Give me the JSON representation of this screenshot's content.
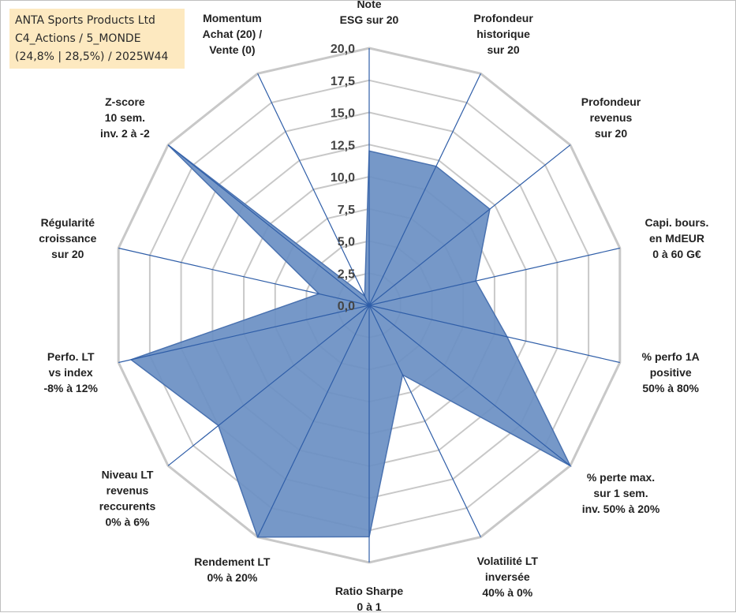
{
  "info": {
    "company": "ANTA Sports Products Ltd",
    "category": "C4_Actions / 5_MONDE",
    "stats": "(24,8% | 28,5%) / 2025W44"
  },
  "colors": {
    "fill": "#6a8fc3",
    "stroke": "#4a72b0",
    "spoke": "#2f5ea8",
    "grid": "#c8c8c8",
    "infobox": "#fde9c0"
  },
  "chart_data": {
    "type": "radar",
    "title": "",
    "rmin": 0,
    "rmax": 20,
    "tick_step": 2.5,
    "tick_labels": [
      "0,0",
      "2,5",
      "5,0",
      "7,5",
      "10,0",
      "12,5",
      "15,0",
      "17,5",
      "20,0"
    ],
    "axes": [
      {
        "lines": [
          "Note",
          "ESG sur 20"
        ],
        "value": 12
      },
      {
        "lines": [
          "Profondeur",
          "historique",
          "sur 20"
        ],
        "value": 12
      },
      {
        "lines": [
          "Profondeur",
          "revenus",
          "sur 20"
        ],
        "value": 12
      },
      {
        "lines": [
          "Capi. bours.",
          "en MdEUR",
          "0 à 60 G€"
        ],
        "value": 8.5
      },
      {
        "lines": [
          "% perfo 1A",
          "positive",
          "50% à 80%"
        ],
        "value": 11
      },
      {
        "lines": [
          "% perte max.",
          "sur 1 sem.",
          "inv. 50% à 20%"
        ],
        "value": 20
      },
      {
        "lines": [
          "Volatilité LT",
          "inversée",
          "40% à 0%"
        ],
        "value": 6
      },
      {
        "lines": [
          "Ratio Sharpe",
          "0 à 1"
        ],
        "value": 18
      },
      {
        "lines": [
          "Rendement LT",
          "0% à 20%"
        ],
        "value": 20
      },
      {
        "lines": [
          "Niveau LT",
          "revenus",
          "reccurents",
          "0% à 6%"
        ],
        "value": 15
      },
      {
        "lines": [
          "Perfo. LT",
          "vs index",
          "-8% à 12%"
        ],
        "value": 19
      },
      {
        "lines": [
          "Régularité",
          "croissance",
          "sur 20"
        ],
        "value": 4
      },
      {
        "lines": [
          "Z-score",
          "10 sem.",
          "inv. 2 à -2"
        ],
        "value": 20
      },
      {
        "lines": [
          "Momentum",
          "Achat (20) /",
          "Vente (0)"
        ],
        "value": 0.8
      }
    ]
  }
}
